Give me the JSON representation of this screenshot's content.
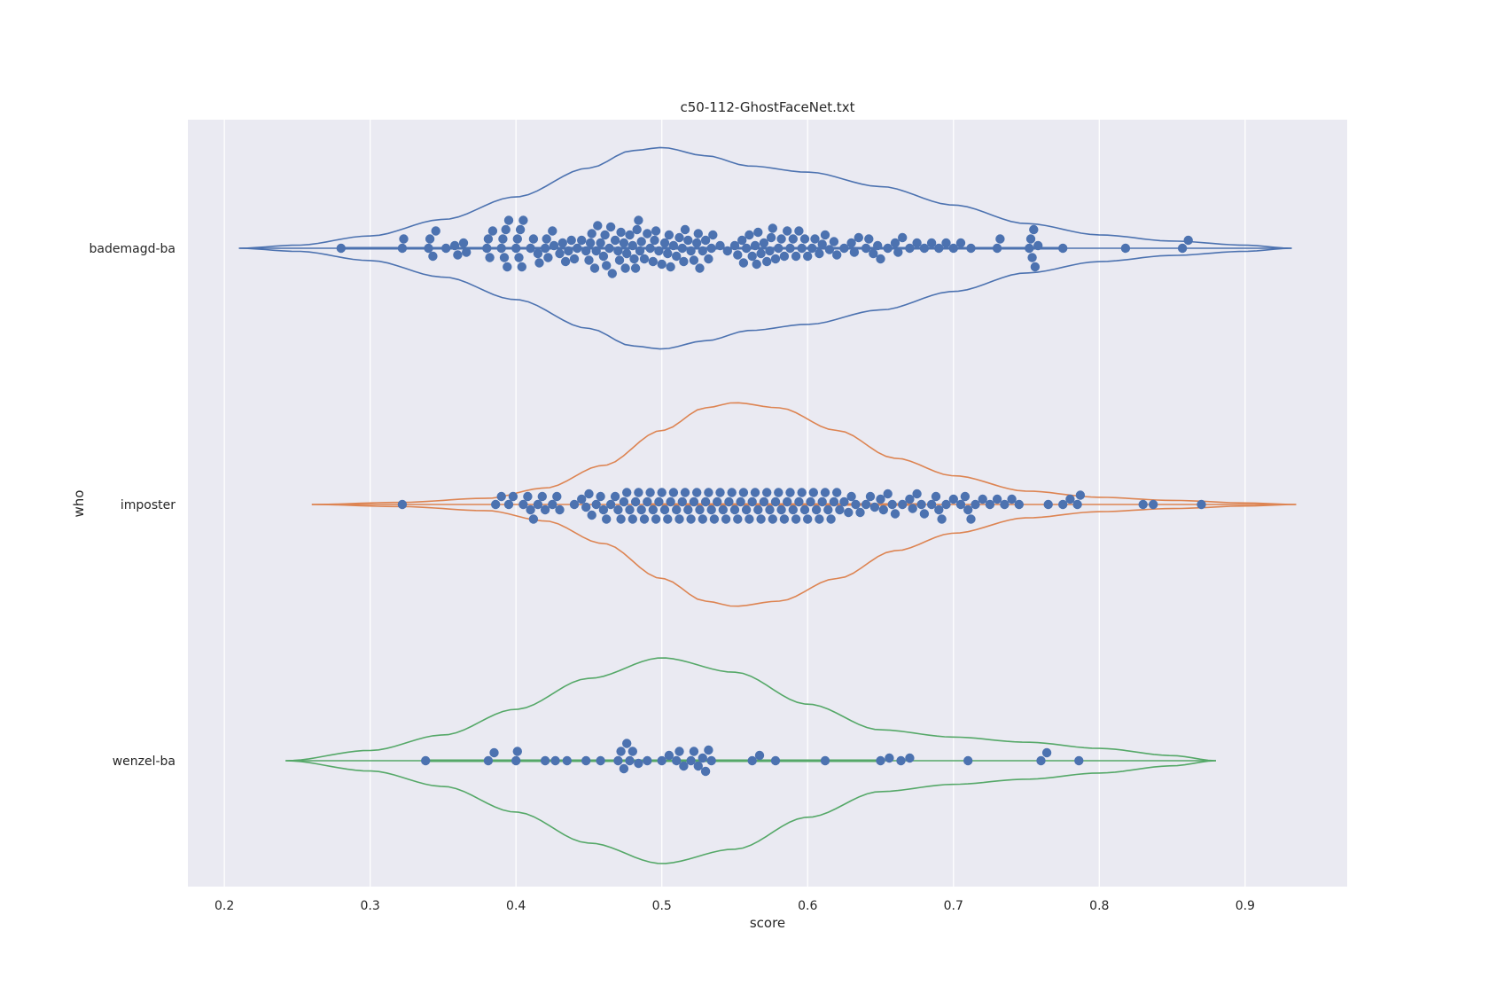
{
  "chart_data": {
    "type": "violin",
    "title": "c50-112-GhostFaceNet.txt",
    "xlabel": "score",
    "ylabel": "who",
    "xlim": [
      0.175,
      0.97
    ],
    "x_ticks": [
      0.2,
      0.3,
      0.4,
      0.5,
      0.6,
      0.7,
      0.8,
      0.9
    ],
    "x_tick_labels": [
      "0.2",
      "0.3",
      "0.4",
      "0.5",
      "0.6",
      "0.7",
      "0.8",
      "0.9"
    ],
    "categories": [
      "bademagd-ba",
      "imposter",
      "wenzel-ba"
    ],
    "grid": true,
    "orientation": "horizontal",
    "point_color": "#4c72b0",
    "background": "#eaeaf2",
    "series": [
      {
        "category": "bademagd-ba",
        "color": "#4c72b0",
        "support": [
          0.21,
          0.932
        ],
        "quartile_line": [
          0.28,
          0.775
        ],
        "density": [
          [
            0.21,
            0.0
          ],
          [
            0.25,
            0.03
          ],
          [
            0.3,
            0.12
          ],
          [
            0.35,
            0.28
          ],
          [
            0.4,
            0.5
          ],
          [
            0.45,
            0.78
          ],
          [
            0.48,
            0.95
          ],
          [
            0.5,
            0.98
          ],
          [
            0.53,
            0.9
          ],
          [
            0.56,
            0.8
          ],
          [
            0.6,
            0.74
          ],
          [
            0.65,
            0.6
          ],
          [
            0.7,
            0.42
          ],
          [
            0.75,
            0.24
          ],
          [
            0.8,
            0.13
          ],
          [
            0.85,
            0.07
          ],
          [
            0.9,
            0.03
          ],
          [
            0.932,
            0.0
          ]
        ],
        "points": [
          0.28,
          0.322,
          0.323,
          0.34,
          0.341,
          0.343,
          0.345,
          0.352,
          0.358,
          0.36,
          0.364,
          0.366,
          0.38,
          0.381,
          0.382,
          0.384,
          0.39,
          0.391,
          0.392,
          0.393,
          0.394,
          0.395,
          0.4,
          0.401,
          0.402,
          0.403,
          0.404,
          0.405,
          0.41,
          0.412,
          0.415,
          0.416,
          0.42,
          0.421,
          0.422,
          0.425,
          0.426,
          0.43,
          0.432,
          0.434,
          0.436,
          0.438,
          0.44,
          0.442,
          0.445,
          0.448,
          0.45,
          0.451,
          0.452,
          0.454,
          0.455,
          0.456,
          0.458,
          0.46,
          0.461,
          0.462,
          0.464,
          0.465,
          0.466,
          0.468,
          0.47,
          0.471,
          0.472,
          0.474,
          0.475,
          0.476,
          0.478,
          0.48,
          0.481,
          0.482,
          0.483,
          0.484,
          0.485,
          0.486,
          0.488,
          0.49,
          0.492,
          0.494,
          0.495,
          0.496,
          0.498,
          0.5,
          0.502,
          0.504,
          0.505,
          0.506,
          0.508,
          0.51,
          0.512,
          0.514,
          0.515,
          0.516,
          0.518,
          0.52,
          0.522,
          0.524,
          0.525,
          0.526,
          0.528,
          0.53,
          0.532,
          0.534,
          0.535,
          0.54,
          0.545,
          0.55,
          0.552,
          0.555,
          0.556,
          0.558,
          0.56,
          0.562,
          0.564,
          0.565,
          0.566,
          0.568,
          0.57,
          0.572,
          0.574,
          0.575,
          0.576,
          0.578,
          0.58,
          0.582,
          0.584,
          0.586,
          0.588,
          0.59,
          0.592,
          0.594,
          0.596,
          0.598,
          0.6,
          0.603,
          0.605,
          0.608,
          0.61,
          0.612,
          0.615,
          0.618,
          0.62,
          0.625,
          0.63,
          0.632,
          0.635,
          0.64,
          0.642,
          0.645,
          0.648,
          0.65,
          0.655,
          0.66,
          0.662,
          0.665,
          0.67,
          0.675,
          0.68,
          0.685,
          0.69,
          0.695,
          0.7,
          0.705,
          0.712,
          0.73,
          0.732,
          0.752,
          0.753,
          0.754,
          0.755,
          0.756,
          0.758,
          0.775,
          0.818,
          0.857,
          0.861
        ]
      },
      {
        "category": "imposter",
        "color": "#dd8452",
        "support": [
          0.26,
          0.935
        ],
        "quartile_line": [
          0.49,
          0.68
        ],
        "density": [
          [
            0.26,
            0.0
          ],
          [
            0.32,
            0.02
          ],
          [
            0.38,
            0.06
          ],
          [
            0.42,
            0.16
          ],
          [
            0.46,
            0.38
          ],
          [
            0.5,
            0.72
          ],
          [
            0.53,
            0.94
          ],
          [
            0.55,
            0.99
          ],
          [
            0.58,
            0.94
          ],
          [
            0.62,
            0.72
          ],
          [
            0.66,
            0.45
          ],
          [
            0.7,
            0.28
          ],
          [
            0.75,
            0.13
          ],
          [
            0.8,
            0.07
          ],
          [
            0.85,
            0.04
          ],
          [
            0.9,
            0.015
          ],
          [
            0.935,
            0.0
          ]
        ],
        "points": [
          0.322,
          0.386,
          0.39,
          0.395,
          0.398,
          0.405,
          0.408,
          0.41,
          0.412,
          0.415,
          0.418,
          0.42,
          0.425,
          0.428,
          0.43,
          0.44,
          0.445,
          0.448,
          0.45,
          0.452,
          0.455,
          0.458,
          0.46,
          0.462,
          0.465,
          0.468,
          0.47,
          0.472,
          0.474,
          0.476,
          0.478,
          0.48,
          0.482,
          0.484,
          0.486,
          0.488,
          0.49,
          0.492,
          0.494,
          0.496,
          0.498,
          0.5,
          0.502,
          0.504,
          0.506,
          0.508,
          0.51,
          0.512,
          0.514,
          0.516,
          0.518,
          0.52,
          0.522,
          0.524,
          0.526,
          0.528,
          0.53,
          0.532,
          0.534,
          0.536,
          0.538,
          0.54,
          0.542,
          0.544,
          0.546,
          0.548,
          0.55,
          0.552,
          0.554,
          0.556,
          0.558,
          0.56,
          0.562,
          0.564,
          0.566,
          0.568,
          0.57,
          0.572,
          0.574,
          0.576,
          0.578,
          0.58,
          0.582,
          0.584,
          0.586,
          0.588,
          0.59,
          0.592,
          0.594,
          0.596,
          0.598,
          0.6,
          0.602,
          0.604,
          0.606,
          0.608,
          0.61,
          0.612,
          0.614,
          0.616,
          0.618,
          0.62,
          0.622,
          0.625,
          0.628,
          0.63,
          0.633,
          0.636,
          0.64,
          0.643,
          0.646,
          0.65,
          0.652,
          0.655,
          0.658,
          0.66,
          0.665,
          0.67,
          0.672,
          0.675,
          0.678,
          0.68,
          0.685,
          0.688,
          0.69,
          0.692,
          0.695,
          0.7,
          0.705,
          0.708,
          0.71,
          0.712,
          0.715,
          0.72,
          0.725,
          0.73,
          0.735,
          0.74,
          0.745,
          0.765,
          0.775,
          0.78,
          0.785,
          0.787,
          0.83,
          0.837,
          0.87
        ]
      },
      {
        "category": "wenzel-ba",
        "color": "#55a868",
        "support": [
          0.242,
          0.88
        ],
        "quartile_line": [
          0.34,
          0.65
        ],
        "density": [
          [
            0.242,
            0.0
          ],
          [
            0.3,
            0.1
          ],
          [
            0.35,
            0.25
          ],
          [
            0.4,
            0.5
          ],
          [
            0.45,
            0.8
          ],
          [
            0.5,
            1.0
          ],
          [
            0.55,
            0.86
          ],
          [
            0.6,
            0.55
          ],
          [
            0.65,
            0.3
          ],
          [
            0.7,
            0.23
          ],
          [
            0.75,
            0.18
          ],
          [
            0.8,
            0.12
          ],
          [
            0.85,
            0.05
          ],
          [
            0.88,
            0.0
          ]
        ],
        "points": [
          0.338,
          0.381,
          0.385,
          0.4,
          0.401,
          0.42,
          0.427,
          0.435,
          0.448,
          0.458,
          0.47,
          0.472,
          0.474,
          0.476,
          0.478,
          0.48,
          0.484,
          0.49,
          0.5,
          0.505,
          0.51,
          0.512,
          0.515,
          0.52,
          0.522,
          0.525,
          0.528,
          0.53,
          0.532,
          0.534,
          0.562,
          0.567,
          0.578,
          0.612,
          0.65,
          0.656,
          0.664,
          0.67,
          0.71,
          0.76,
          0.764,
          0.786
        ]
      }
    ]
  }
}
